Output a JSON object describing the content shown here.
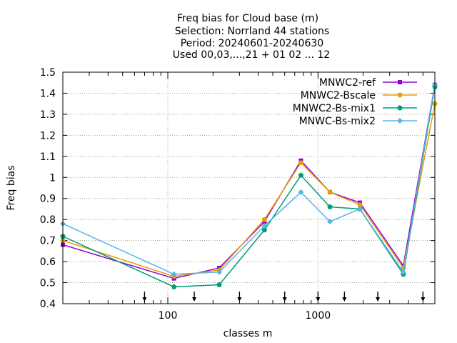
{
  "chart_data": {
    "type": "line",
    "title_lines": [
      "Freq bias  for Cloud base (m)",
      "Selection: Norrland     44 stations",
      "Period: 20240601-20240630",
      "Used 00,03,...,21 + 01 02 ... 12"
    ],
    "xlabel": "classes m",
    "ylabel": "Freq bias",
    "x_scale": "log",
    "xlim": [
      20,
      6000
    ],
    "ylim": [
      0.4,
      1.5
    ],
    "yticks": [
      0.4,
      0.5,
      0.6,
      0.7,
      0.8,
      0.9,
      1,
      1.1,
      1.2,
      1.3,
      1.4,
      1.5
    ],
    "ytick_labels": [
      "0.4",
      "0.5",
      "0.6",
      "0.7",
      "0.8",
      "0.9",
      "1",
      "1.1",
      "1.2",
      "1.3",
      "1.4",
      "1.5"
    ],
    "xticks_labeled": [
      100,
      1000
    ],
    "xtick_labels": [
      "100",
      "1000"
    ],
    "grid": true,
    "legend_position": "top-right",
    "arrow_markers_x": [
      70,
      150,
      300,
      600,
      1000,
      1500,
      2500,
      5000
    ],
    "x": [
      20,
      110,
      220,
      440,
      770,
      1200,
      1900,
      3700,
      6000
    ],
    "series": [
      {
        "name": "MNWC2-ref",
        "color": "#9400d3",
        "marker": "square",
        "values": [
          0.68,
          0.52,
          0.57,
          0.79,
          1.08,
          0.93,
          0.88,
          0.58,
          1.44
        ]
      },
      {
        "name": "MNWC2-Bscale",
        "color": "#e69f00",
        "marker": "circle",
        "values": [
          0.7,
          0.53,
          0.56,
          0.8,
          1.07,
          0.93,
          0.87,
          0.57,
          1.35
        ]
      },
      {
        "name": "MNWC2-Bs-mix1",
        "color": "#009e73",
        "marker": "star",
        "values": [
          0.72,
          0.48,
          0.49,
          0.75,
          1.01,
          0.86,
          0.85,
          0.54,
          1.43
        ]
      },
      {
        "name": "MNWC-Bs-mix2",
        "color": "#56b4e9",
        "marker": "diamond",
        "values": [
          0.78,
          0.54,
          0.55,
          0.77,
          0.93,
          0.79,
          0.85,
          0.55,
          1.44
        ]
      }
    ]
  }
}
